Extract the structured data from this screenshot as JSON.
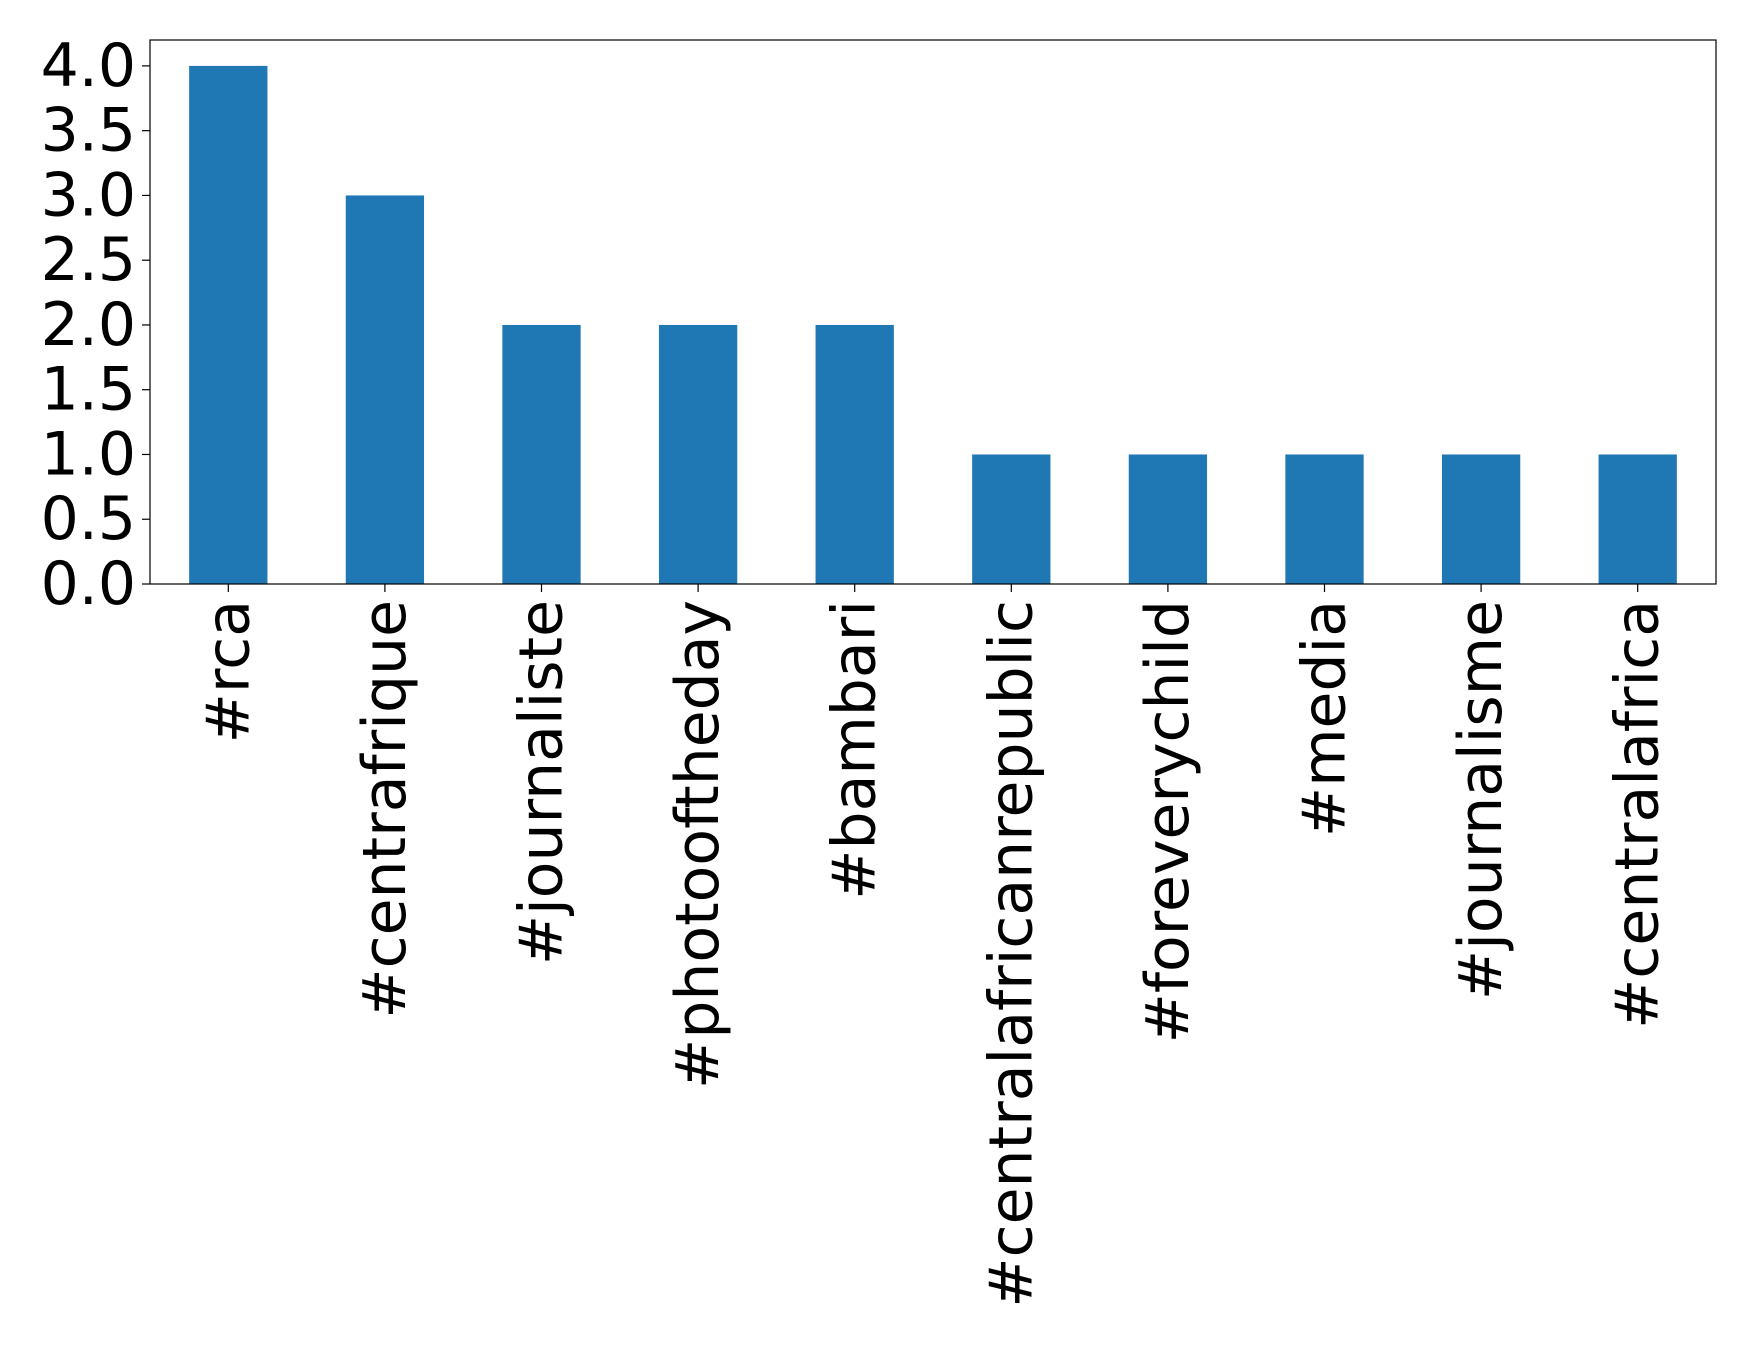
{
  "chart_data": {
    "type": "bar",
    "categories": [
      "#rca",
      "#centrafrique",
      "#journaliste",
      "#photooftheday",
      "#bambari",
      "#centralafricanrepublic",
      "#foreverychild",
      "#media",
      "#journalisme",
      "#centralafrica"
    ],
    "values": [
      4,
      3,
      2,
      2,
      2,
      1,
      1,
      1,
      1,
      1
    ],
    "color": "#1f77b4",
    "ylim": [
      0,
      4.2
    ],
    "yticks": [
      {
        "value": 0,
        "label": "0.0"
      },
      0.5,
      {
        "value": 1,
        "label": "1.0"
      },
      1.5,
      {
        "value": 2,
        "label": "2.0"
      },
      2.5,
      {
        "value": 3,
        "label": "3.0"
      },
      3.5,
      {
        "value": 4,
        "label": "4.0"
      }
    ],
    "grid": false
  }
}
